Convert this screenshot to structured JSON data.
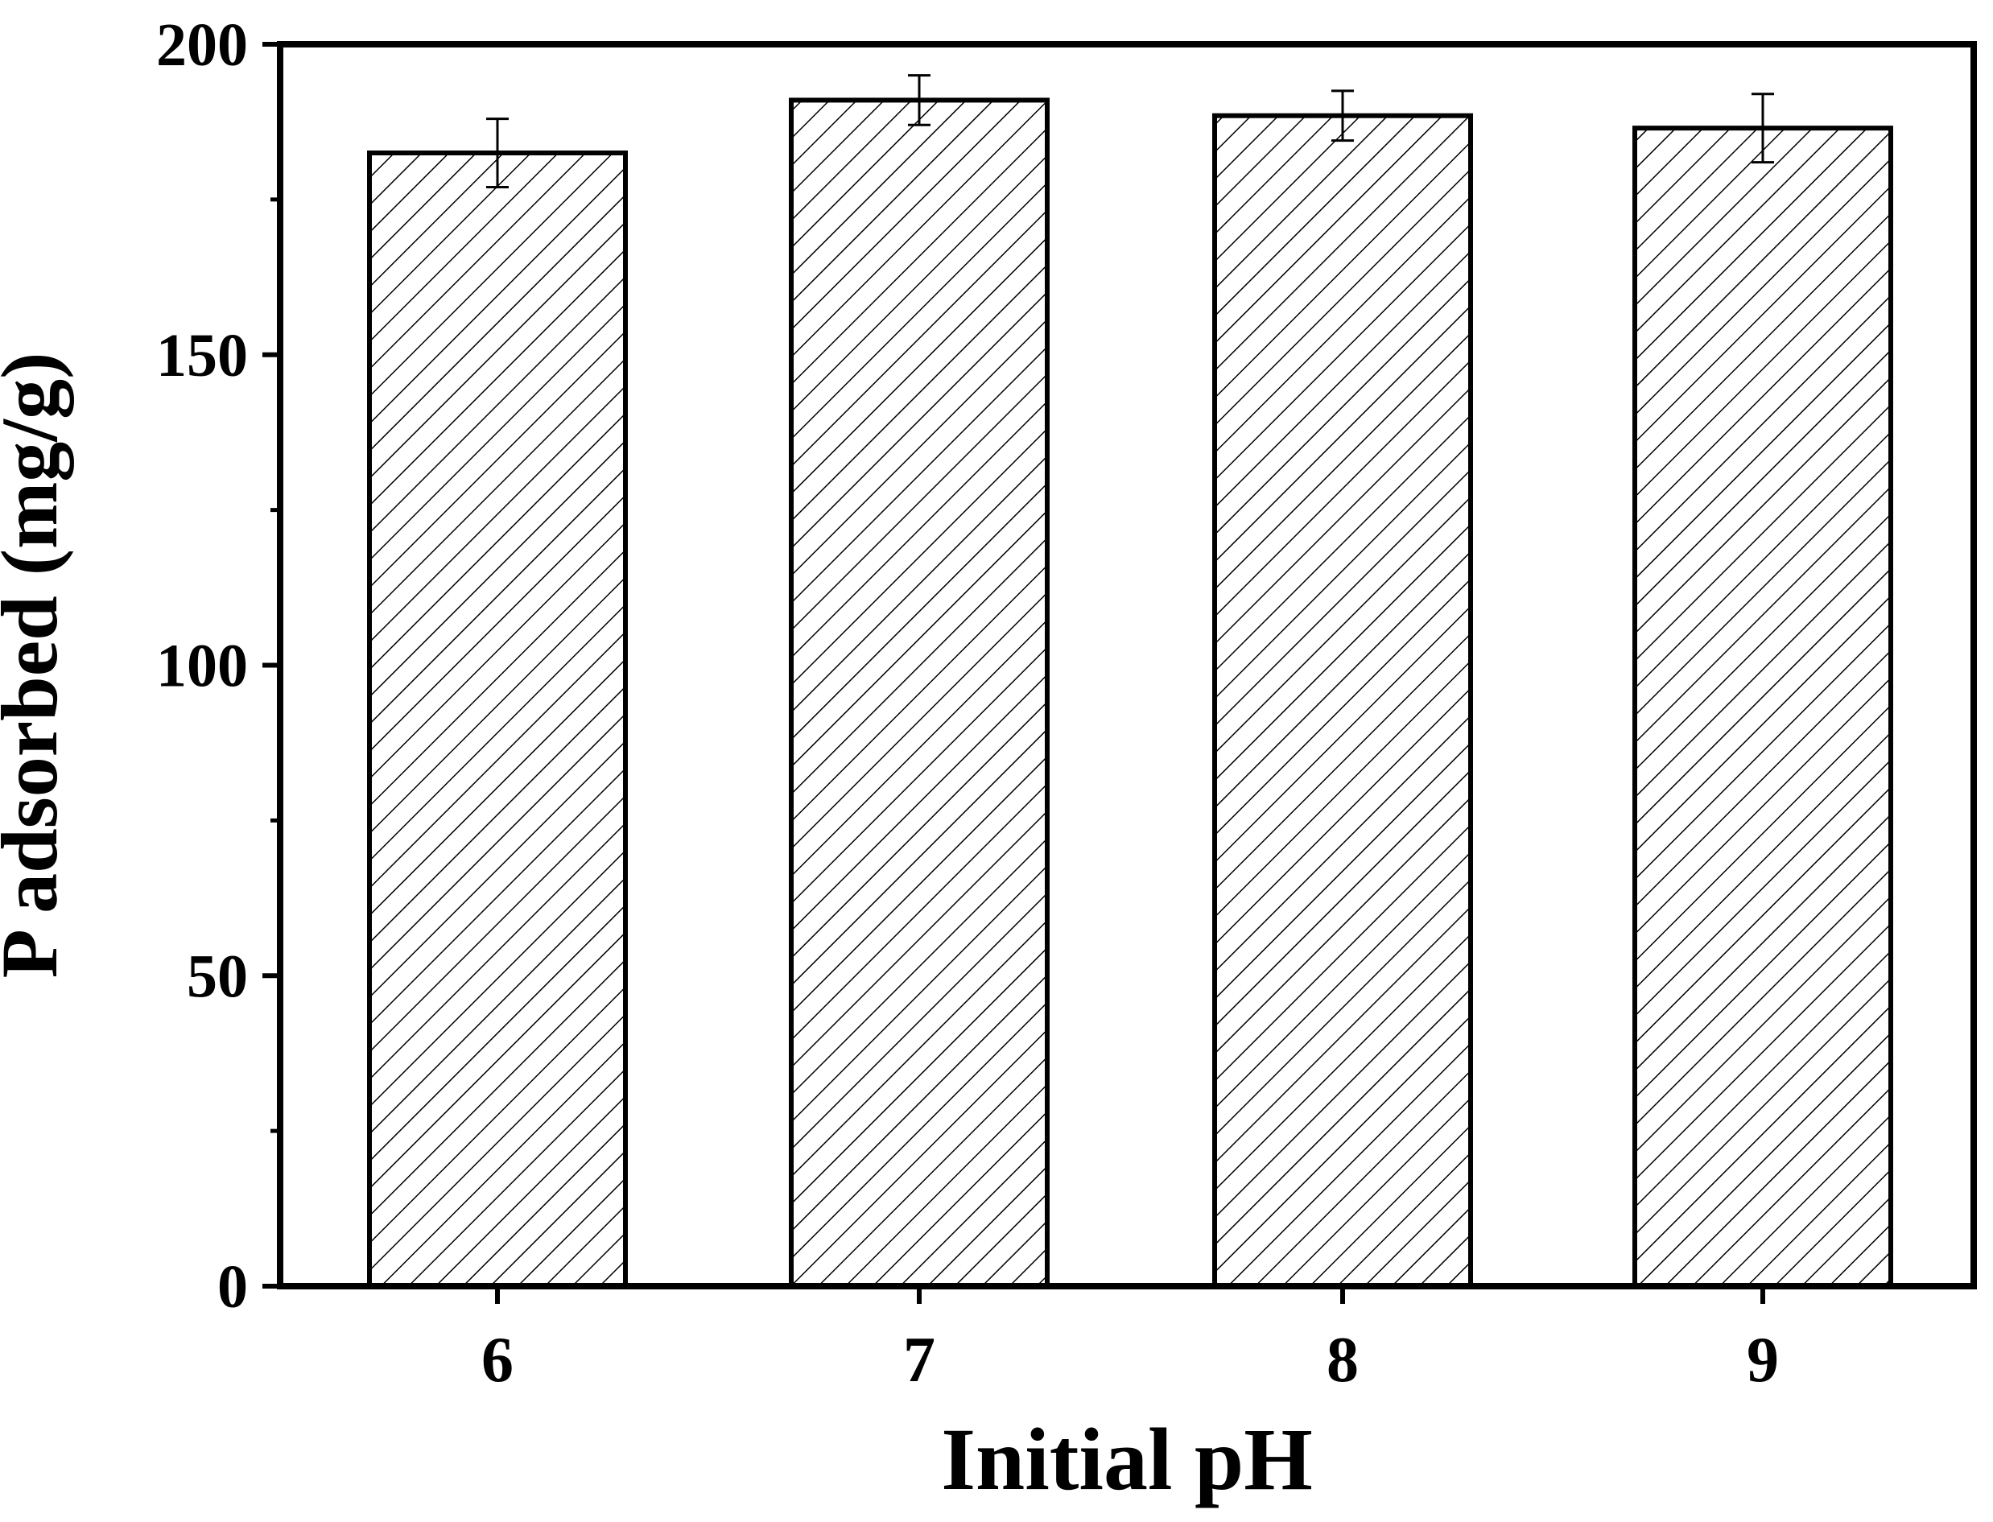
{
  "chart_data": {
    "type": "bar",
    "title": "",
    "xlabel": "Initial pH",
    "ylabel": "P adsorbed (mg/g)",
    "categories": [
      "6",
      "7",
      "8",
      "9"
    ],
    "values": [
      182.5,
      191.0,
      188.5,
      186.5
    ],
    "errors": [
      5.5,
      4.0,
      4.0,
      5.5
    ],
    "ylim": [
      0,
      200
    ],
    "yticks": [
      0,
      50,
      100,
      150,
      200
    ],
    "grid": false,
    "legend": "none",
    "bar_fill": "diagonal-hatch",
    "colors": {
      "bar_edge": "#000000",
      "hatch": "#000000",
      "background": "#ffffff"
    }
  }
}
